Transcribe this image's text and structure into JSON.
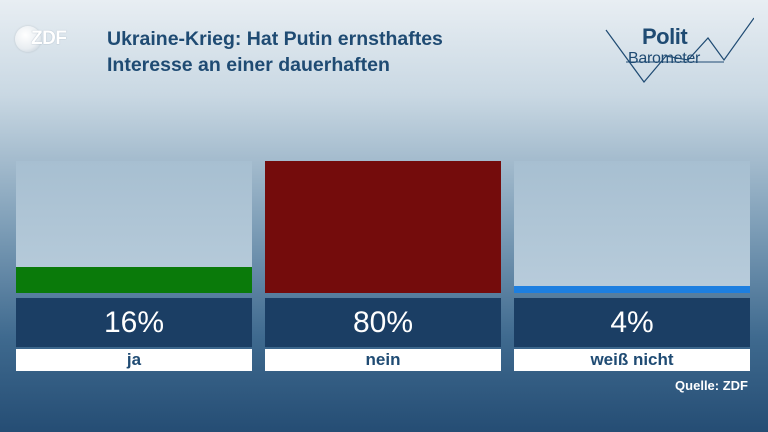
{
  "logo": {
    "text": "ZDF"
  },
  "title": {
    "line1": "Ukraine-Krieg: Hat Putin ernsthaftes",
    "line2": "Interesse an einer dauerhaften"
  },
  "brand": {
    "word1": "Polit",
    "word2": "Barometer"
  },
  "chart_data": {
    "type": "bar",
    "categories": [
      "ja",
      "nein",
      "weiß nicht"
    ],
    "values": [
      16,
      80,
      4
    ],
    "value_labels": [
      "16%",
      "80%",
      "4%"
    ],
    "colors": [
      "#0a7a0a",
      "#740c0c",
      "#1d7fe0"
    ],
    "ylim": [
      0,
      80
    ],
    "title": "Ukraine-Krieg: Hat Putin ernsthaftes Interesse an einer dauerhaften",
    "xlabel": "",
    "ylabel": ""
  },
  "source": "Quelle: ZDF"
}
